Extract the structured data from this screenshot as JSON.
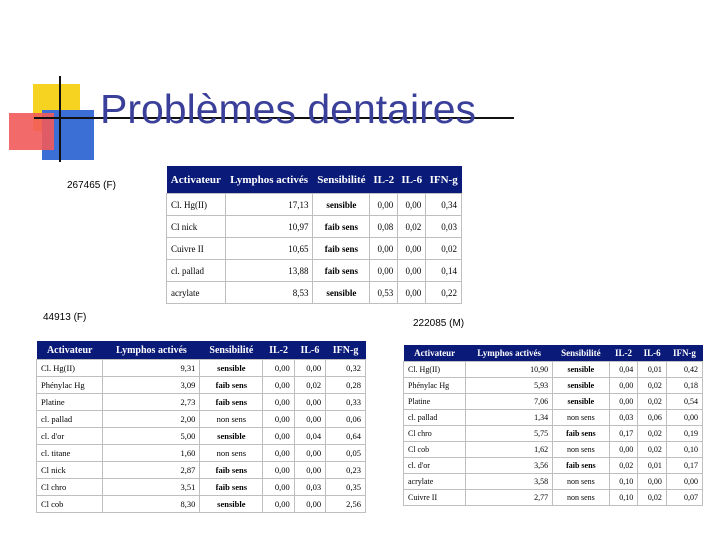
{
  "slide": {
    "title": "Problèmes dentaires"
  },
  "captions": {
    "top": "267465 (F)",
    "left": "44913 (F)",
    "right": "222085 (M)"
  },
  "colors": {
    "header_bg": "#0a1a78",
    "orange_text": "#e05a10",
    "title_color": "#3a3f9a"
  },
  "tables": {
    "top": {
      "headers": [
        "Activateur",
        "Lymphos activés",
        "Sensibilité",
        "IL-2",
        "IL-6",
        "IFN-g"
      ],
      "rows": [
        [
          "Cl. Hg(II)",
          "17,13",
          "sensible",
          "0,00",
          "0,00",
          "0,34"
        ],
        [
          "Cl nick",
          "10,97",
          "faib sens",
          "0,08",
          "0,02",
          "0,03"
        ],
        [
          "Cuivre II",
          "10,65",
          "faib sens",
          "0,00",
          "0,00",
          "0,02"
        ],
        [
          "cl. pallad",
          "13,88",
          "faib sens",
          "0,00",
          "0,00",
          "0,14"
        ],
        [
          "acrylate",
          "8,53",
          "sensible",
          "0,53",
          "0,00",
          "0,22"
        ]
      ]
    },
    "left": {
      "headers": [
        "Activateur",
        "Lymphos activés",
        "Sensibilité",
        "IL-2",
        "IL-6",
        "IFN-g"
      ],
      "rows": [
        [
          "Cl. Hg(II)",
          "9,31",
          "sensible",
          "0,00",
          "0,00",
          "0,32"
        ],
        [
          "Phénylac Hg",
          "3,09",
          "faib sens",
          "0,00",
          "0,02",
          "0,28"
        ],
        [
          "Platine",
          "2,73",
          "faib sens",
          "0,00",
          "0,00",
          "0,33"
        ],
        [
          "cl. pallad",
          "2,00",
          "non sens",
          "0,00",
          "0,00",
          "0,06"
        ],
        [
          "cl. d'or",
          "5,00",
          "sensible",
          "0,00",
          "0,04",
          "0,64"
        ],
        [
          "cl. titane",
          "1,60",
          "non sens",
          "0,00",
          "0,00",
          "0,05"
        ],
        [
          "Cl nick",
          "2,87",
          "faib sens",
          "0,00",
          "0,00",
          "0,23"
        ],
        [
          "Cl chro",
          "3,51",
          "faib sens",
          "0,00",
          "0,03",
          "0,35"
        ],
        [
          "Cl cob",
          "8,30",
          "sensible",
          "0,00",
          "0,00",
          "2,56"
        ]
      ]
    },
    "right": {
      "headers": [
        "Activateur",
        "Lymphos activés",
        "Sensibilité",
        "IL-2",
        "IL-6",
        "IFN-g"
      ],
      "rows": [
        [
          "Cl. Hg(II)",
          "10,90",
          "sensible",
          "0,04",
          "0,01",
          "0,42"
        ],
        [
          "Phénylac Hg",
          "5,93",
          "sensible",
          "0,00",
          "0,02",
          "0,18"
        ],
        [
          "Platine",
          "7,06",
          "sensible",
          "0,00",
          "0,02",
          "0,54"
        ],
        [
          "cl. pallad",
          "1,34",
          "non sens",
          "0,03",
          "0,06",
          "0,00"
        ],
        [
          "Cl chro",
          "5,75",
          "faib sens",
          "0,17",
          "0,02",
          "0,19"
        ],
        [
          "Cl cob",
          "1,62",
          "non sens",
          "0,00",
          "0,02",
          "0,10"
        ],
        [
          "cl. d'or",
          "3,56",
          "faib sens",
          "0,02",
          "0,01",
          "0,17"
        ],
        [
          "acrylate",
          "3,58",
          "non sens",
          "0,10",
          "0,00",
          "0,00"
        ],
        [
          "Cuivre II",
          "2,77",
          "non sens",
          "0,10",
          "0,02",
          "0,07"
        ]
      ]
    }
  }
}
